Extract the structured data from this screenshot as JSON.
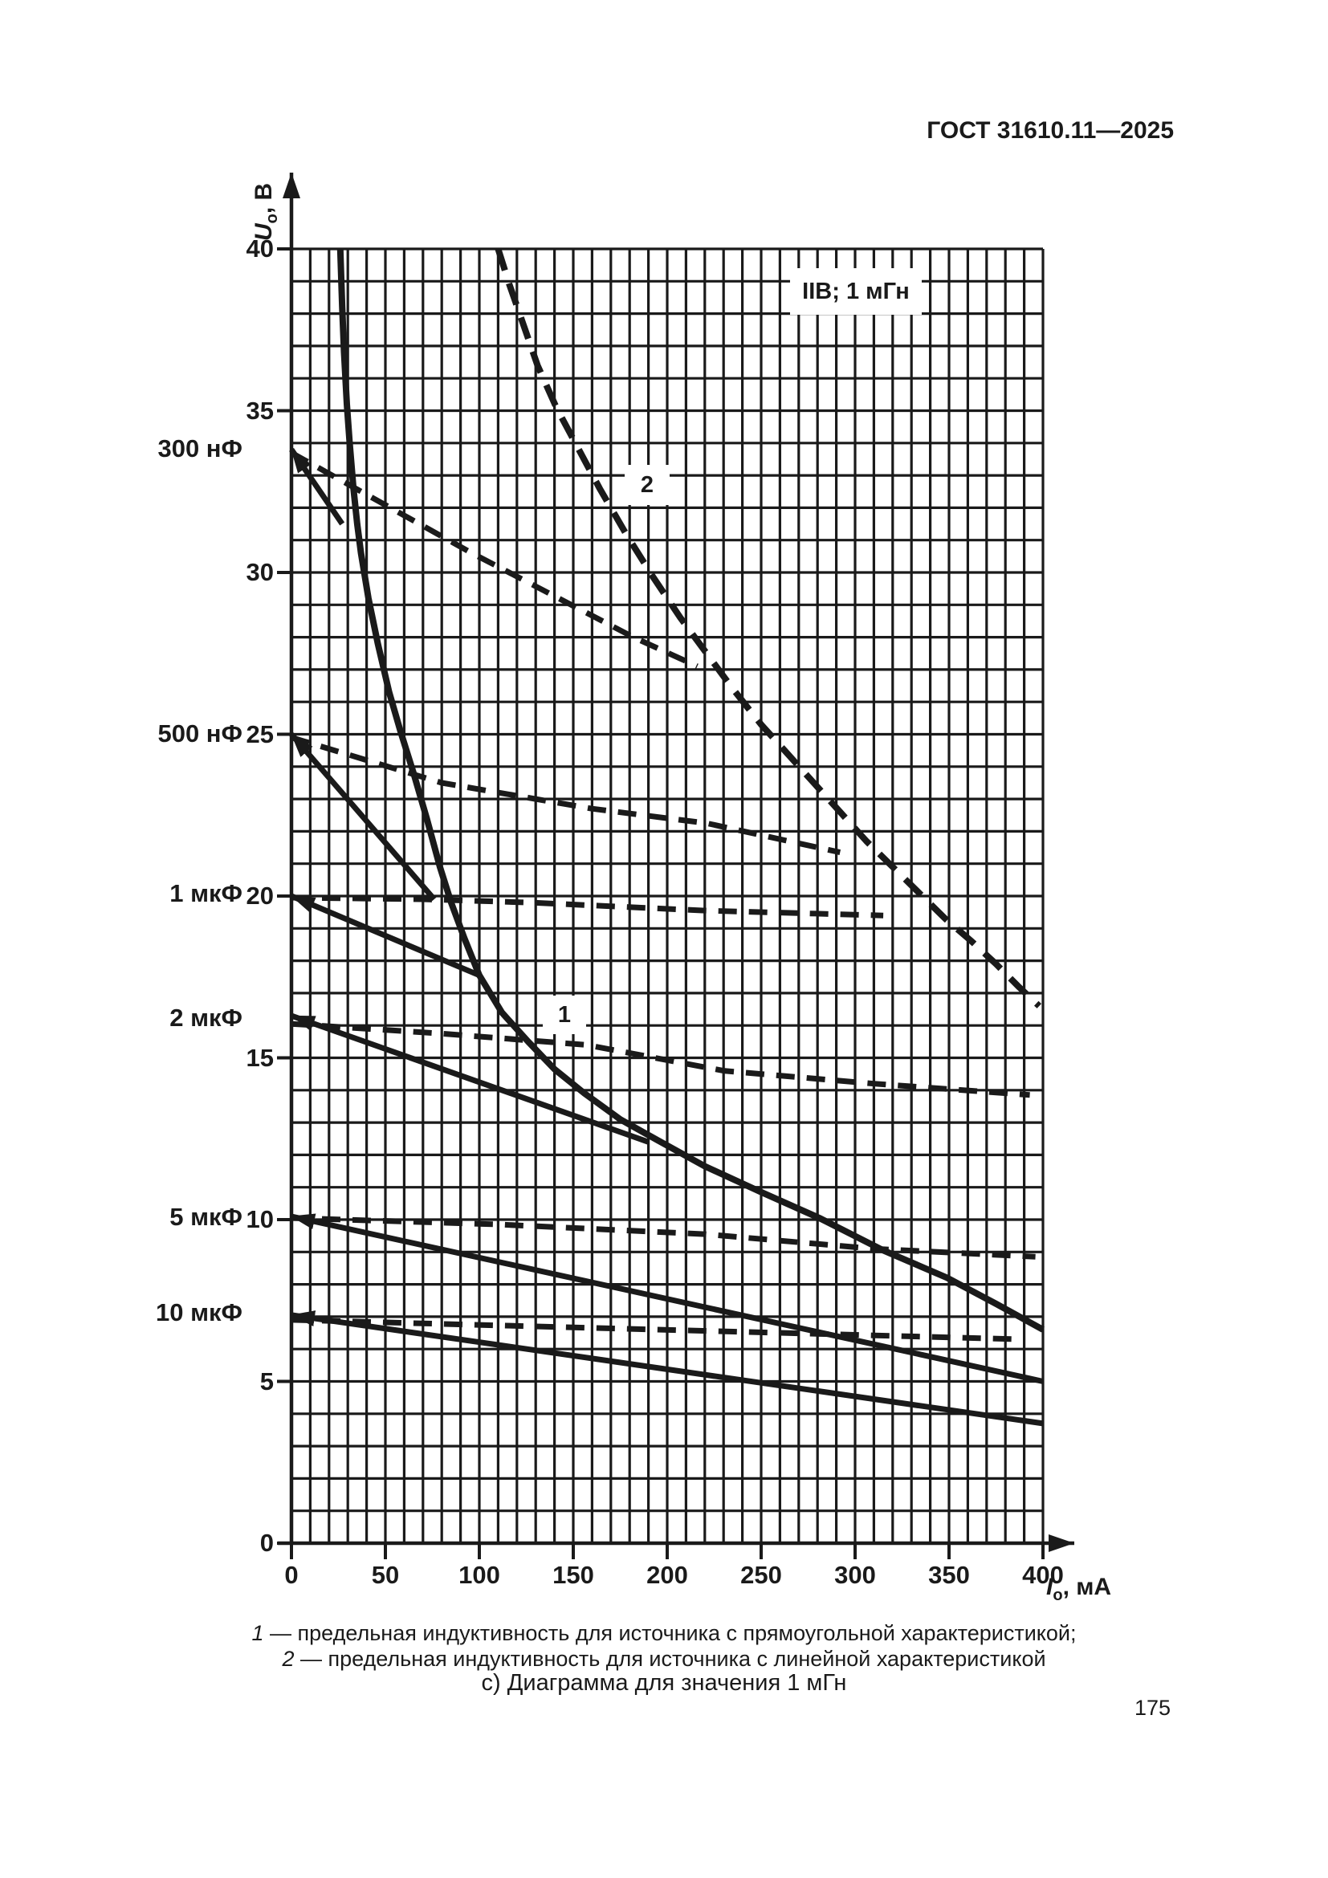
{
  "page": {
    "header": "ГОСТ 31610.11—2025",
    "page_number": "175"
  },
  "chart": {
    "y_axis": {
      "symbol": "U",
      "subscript": "o",
      "unit": ", В"
    },
    "x_axis": {
      "symbol": "I",
      "subscript": "o",
      "unit": ", мА"
    }
  },
  "legend": [
    {
      "num": "1",
      "text": "— предельная индуктивность для источника с прямоугольной характеристикой;"
    },
    {
      "num": "2",
      "text": "— предельная индуктивность для источника с линейной характеристикой"
    }
  ],
  "caption": "с) Диаграмма для значения 1 мГн",
  "chart_data": {
    "type": "line",
    "title": "IIB; 1 мГн",
    "xlabel": "I0, мА",
    "ylabel": "U0, В",
    "xlim": [
      0,
      400
    ],
    "ylim": [
      0,
      40
    ],
    "x_tick_step": 50,
    "y_tick_step": 5,
    "x_minor_step": 10,
    "y_minor_step": 1,
    "grid": true,
    "legend_position": "below",
    "series": [
      {
        "id": "1",
        "label": "1",
        "role": "предельная индуктивность для источника с прямоугольной характеристикой",
        "style": "solid",
        "width": 8,
        "arrow": false,
        "points": [
          [
            26,
            40
          ],
          [
            27,
            38.2
          ],
          [
            28,
            36.8
          ],
          [
            29.5,
            35.2
          ],
          [
            31,
            34
          ],
          [
            33,
            32.6
          ],
          [
            35,
            31.5
          ],
          [
            37,
            30.6
          ],
          [
            41,
            29.2
          ],
          [
            46,
            27.8
          ],
          [
            52,
            26.3
          ],
          [
            58,
            25.1
          ],
          [
            65,
            23.8
          ],
          [
            72,
            22.4
          ],
          [
            79,
            20.9
          ],
          [
            85,
            19.8
          ],
          [
            92,
            18.7
          ],
          [
            100,
            17.55
          ],
          [
            112,
            16.4
          ],
          [
            126,
            15.5
          ],
          [
            140,
            14.65
          ],
          [
            156,
            13.9
          ],
          [
            175,
            13.1
          ],
          [
            195,
            12.45
          ],
          [
            220,
            11.65
          ],
          [
            250,
            10.85
          ],
          [
            281,
            10.05
          ],
          [
            315,
            9.05
          ],
          [
            349,
            8.2
          ],
          [
            375,
            7.4
          ],
          [
            400,
            6.6
          ]
        ]
      },
      {
        "id": "2",
        "label": "2",
        "role": "предельная индуктивность для источника с линейной характеристикой",
        "style": "dashed",
        "width": 8,
        "dash": "28 17",
        "arrow": false,
        "points": [
          [
            110,
            40
          ],
          [
            116,
            38.9
          ],
          [
            122,
            37.9
          ],
          [
            131,
            36.4
          ],
          [
            141,
            35.1
          ],
          [
            152,
            33.9
          ],
          [
            164,
            32.6
          ],
          [
            178,
            31.2
          ],
          [
            192,
            29.9
          ],
          [
            207,
            28.6
          ],
          [
            221,
            27.5
          ],
          [
            235,
            26.4
          ],
          [
            250,
            25.3
          ],
          [
            264,
            24.4
          ],
          [
            278,
            23.5
          ],
          [
            292,
            22.6
          ],
          [
            306,
            21.7
          ],
          [
            320,
            20.9
          ],
          [
            334,
            20.1
          ],
          [
            348,
            19.3
          ],
          [
            362,
            18.6
          ],
          [
            375,
            17.9
          ],
          [
            387,
            17.2
          ],
          [
            398,
            16.6
          ]
        ]
      },
      {
        "id": "c300n-solid",
        "label": "300 нФ",
        "style": "solid",
        "width": 7,
        "arrow": true,
        "points": [
          [
            0,
            33.8
          ],
          [
            27,
            31.5
          ]
        ]
      },
      {
        "id": "c500n-solid",
        "label": "500 нФ",
        "style": "solid",
        "width": 7,
        "arrow": true,
        "points": [
          [
            0,
            25
          ],
          [
            76,
            19.9
          ]
        ]
      },
      {
        "id": "c1u-solid",
        "label": "1 мкФ",
        "style": "solid",
        "width": 7,
        "arrow": true,
        "points": [
          [
            0,
            20
          ],
          [
            100,
            17.55
          ]
        ]
      },
      {
        "id": "c2u-solid",
        "label": "2 мкФ",
        "style": "solid",
        "width": 7,
        "arrow": true,
        "points": [
          [
            0,
            16.3
          ],
          [
            190,
            12.4
          ]
        ]
      },
      {
        "id": "c5u-solid",
        "label": "5 мкФ",
        "style": "solid",
        "width": 7,
        "arrow": true,
        "points": [
          [
            0,
            10.1
          ],
          [
            400,
            5
          ]
        ]
      },
      {
        "id": "c10u-solid",
        "label": "10 мкФ",
        "style": "solid",
        "width": 7,
        "arrow": true,
        "points": [
          [
            0,
            7.05
          ],
          [
            400,
            3.7
          ]
        ]
      },
      {
        "id": "c300n-dashed",
        "label": "300 нФ",
        "style": "dashed",
        "width": 7,
        "dash": "23 15",
        "arrow": false,
        "points": [
          [
            0,
            33.7
          ],
          [
            96,
            30.6
          ],
          [
            182,
            28
          ],
          [
            216,
            27.1
          ]
        ]
      },
      {
        "id": "c500n-dashed",
        "label": "500 нФ",
        "style": "dashed",
        "width": 7,
        "dash": "23 15",
        "arrow": false,
        "points": [
          [
            0,
            24.9
          ],
          [
            80,
            23.5
          ],
          [
            160,
            22.7
          ],
          [
            221,
            22.25
          ],
          [
            292,
            21.35
          ]
        ]
      },
      {
        "id": "c1u-dashed",
        "label": "1 мкФ",
        "style": "dashed",
        "width": 7,
        "dash": "23 15",
        "arrow": false,
        "points": [
          [
            0,
            19.95
          ],
          [
            70,
            19.9
          ],
          [
            127,
            19.8
          ],
          [
            220,
            19.55
          ],
          [
            315,
            19.4
          ]
        ]
      },
      {
        "id": "c2u-dashed",
        "label": "2 мкФ",
        "style": "dashed",
        "width": 7,
        "dash": "23 15",
        "arrow": false,
        "points": [
          [
            0,
            16.05
          ],
          [
            80,
            15.75
          ],
          [
            157,
            15.4
          ],
          [
            230,
            14.6
          ],
          [
            310,
            14.2
          ],
          [
            393,
            13.85
          ]
        ]
      },
      {
        "id": "c5u-dashed",
        "label": "5 мкФ",
        "style": "dashed",
        "width": 7,
        "dash": "23 15",
        "arrow": false,
        "points": [
          [
            0,
            10.05
          ],
          [
            110,
            9.85
          ],
          [
            220,
            9.55
          ],
          [
            310,
            9.1
          ],
          [
            396,
            8.85
          ]
        ]
      },
      {
        "id": "c10u-dashed",
        "label": "10 мкФ",
        "style": "dashed",
        "width": 7,
        "dash": "23 15",
        "arrow": false,
        "points": [
          [
            0,
            6.9
          ],
          [
            130,
            6.7
          ],
          [
            260,
            6.5
          ],
          [
            388,
            6.3
          ]
        ]
      }
    ]
  }
}
